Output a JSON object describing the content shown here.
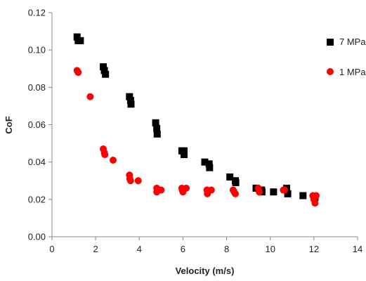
{
  "chart_data": {
    "type": "scatter",
    "xlabel": "Velocity (m/s)",
    "ylabel": "CoF",
    "xlim": [
      0,
      14
    ],
    "ylim": [
      0,
      0.12
    ],
    "x_ticks": [
      "0",
      "2",
      "4",
      "6",
      "8",
      "10",
      "12",
      "14"
    ],
    "y_ticks": [
      "0.00",
      "0.02",
      "0.04",
      "0.06",
      "0.08",
      "0.10",
      "0.12"
    ],
    "grid": false,
    "legend_position": "right",
    "series": [
      {
        "name": "7 MPa",
        "marker": "square",
        "color": "#000000",
        "points": [
          [
            1.15,
            0.107
          ],
          [
            1.2,
            0.105
          ],
          [
            1.3,
            0.105
          ],
          [
            2.35,
            0.091
          ],
          [
            2.4,
            0.089
          ],
          [
            2.45,
            0.087
          ],
          [
            3.55,
            0.075
          ],
          [
            3.6,
            0.073
          ],
          [
            3.62,
            0.071
          ],
          [
            4.75,
            0.061
          ],
          [
            4.8,
            0.058
          ],
          [
            4.82,
            0.055
          ],
          [
            5.95,
            0.046
          ],
          [
            6.05,
            0.046
          ],
          [
            6.05,
            0.044
          ],
          [
            7.0,
            0.04
          ],
          [
            7.2,
            0.039
          ],
          [
            7.22,
            0.037
          ],
          [
            8.15,
            0.032
          ],
          [
            8.4,
            0.03
          ],
          [
            8.42,
            0.029
          ],
          [
            9.35,
            0.026
          ],
          [
            9.6,
            0.025
          ],
          [
            9.62,
            0.024
          ],
          [
            10.15,
            0.024
          ],
          [
            10.75,
            0.026
          ],
          [
            10.8,
            0.023
          ],
          [
            11.5,
            0.022
          ],
          [
            12.05,
            0.021
          ]
        ]
      },
      {
        "name": "1 MPa",
        "marker": "circle",
        "color": "#ff0000",
        "points": [
          [
            1.15,
            0.089
          ],
          [
            1.2,
            0.088
          ],
          [
            1.75,
            0.075
          ],
          [
            2.35,
            0.047
          ],
          [
            2.4,
            0.045
          ],
          [
            2.42,
            0.044
          ],
          [
            2.8,
            0.041
          ],
          [
            3.55,
            0.033
          ],
          [
            3.57,
            0.031
          ],
          [
            3.6,
            0.03
          ],
          [
            3.95,
            0.03
          ],
          [
            4.8,
            0.026
          ],
          [
            4.8,
            0.024
          ],
          [
            5.0,
            0.025
          ],
          [
            5.95,
            0.026
          ],
          [
            5.97,
            0.025
          ],
          [
            6.0,
            0.024
          ],
          [
            6.15,
            0.026
          ],
          [
            7.1,
            0.025
          ],
          [
            7.12,
            0.023
          ],
          [
            7.3,
            0.025
          ],
          [
            8.3,
            0.025
          ],
          [
            8.35,
            0.024
          ],
          [
            8.4,
            0.023
          ],
          [
            9.45,
            0.026
          ],
          [
            9.5,
            0.024
          ],
          [
            9.5,
            0.024
          ],
          [
            10.6,
            0.025
          ],
          [
            10.65,
            0.025
          ],
          [
            11.95,
            0.022
          ],
          [
            12.0,
            0.02
          ],
          [
            12.05,
            0.018
          ],
          [
            12.1,
            0.022
          ]
        ]
      }
    ]
  }
}
